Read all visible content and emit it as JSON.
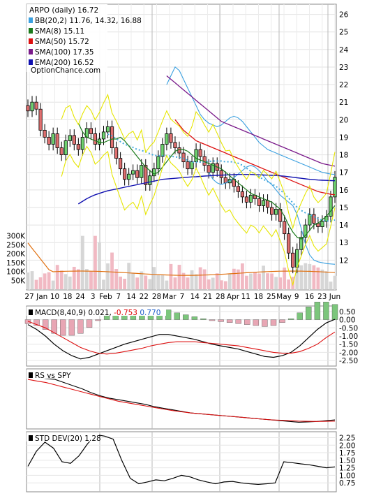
{
  "chart_data": [
    {
      "type": "candlestick",
      "panel": "price",
      "ylim": [
        10.5,
        26.5
      ],
      "y_ticks": [
        12,
        13,
        14,
        15,
        16,
        17,
        18,
        19,
        20,
        21,
        22,
        23,
        24,
        25,
        26
      ],
      "x_tick_labels": [
        "27",
        "Jan",
        "10",
        "18",
        "24",
        "3",
        "Feb",
        "7",
        "14",
        "22",
        "28",
        "Mar",
        "7",
        "14",
        "21",
        "28",
        "Apr",
        "11",
        "18",
        "25",
        "May",
        "9",
        "16",
        "23",
        "Jun"
      ],
      "watermark": "OptionChance.com",
      "legend": [
        {
          "key": "title",
          "label": "ARPO (daily) 16.72",
          "color": "#000000"
        },
        {
          "key": "bb",
          "label": "BB(20,2) 11.76, 14.32, 16.88",
          "color": "#3aa0e0"
        },
        {
          "key": "sma8",
          "label": "SMA(8) 15.11",
          "color": "#1a7a1a"
        },
        {
          "key": "sma50",
          "label": "SMA(50) 15.72",
          "color": "#dd1010"
        },
        {
          "key": "sma100",
          "label": "SMA(100) 17.35",
          "color": "#7a1a8a"
        },
        {
          "key": "ema200",
          "label": "EMA(200) 16.52",
          "color": "#1010b0"
        }
      ],
      "close": [
        20.5,
        21.0,
        20.6,
        19.4,
        19.0,
        18.6,
        19.2,
        18.4,
        18.0,
        18.8,
        19.1,
        18.6,
        18.3,
        19.0,
        19.5,
        19.2,
        18.6,
        18.9,
        19.3,
        19.6,
        18.4,
        17.8,
        17.2,
        16.6,
        16.9,
        17.1,
        16.7,
        17.4,
        16.3,
        16.8,
        17.2,
        17.9,
        18.6,
        19.2,
        18.7,
        18.4,
        18.1,
        17.6,
        17.2,
        17.6,
        18.3,
        17.9,
        17.4,
        17.0,
        17.5,
        17.1,
        16.7,
        16.4,
        16.6,
        16.2,
        15.9,
        15.6,
        15.3,
        15.7,
        15.5,
        15.1,
        15.4,
        15.0,
        14.6,
        14.9,
        14.2,
        13.5,
        12.4,
        11.6,
        12.6,
        13.3,
        14.0,
        14.6,
        14.1,
        13.9,
        14.2,
        14.5,
        15.6,
        16.72
      ],
      "sma8": [
        null,
        null,
        null,
        null,
        null,
        null,
        null,
        19.8,
        19.3,
        19.0,
        18.9,
        18.8,
        18.7,
        18.7,
        18.8,
        18.9,
        18.9,
        19.0,
        18.8,
        18.5,
        18.2,
        17.9,
        17.6,
        17.3,
        17.1,
        16.9,
        17.0,
        17.3,
        17.6,
        17.9,
        18.2,
        18.3,
        18.3,
        18.2,
        18.0,
        17.8,
        17.7,
        17.6,
        17.5,
        17.4,
        17.3,
        17.2,
        17.0,
        16.8,
        16.6,
        16.4,
        16.2,
        16.0,
        15.8,
        15.7,
        15.6,
        15.5,
        15.4,
        15.3,
        15.1,
        14.9,
        14.5,
        14.0,
        13.6,
        13.3,
        13.2,
        13.4,
        13.7,
        14.0,
        14.1,
        14.3,
        14.5,
        14.8,
        15.11
      ],
      "sma50": [
        null,
        null,
        null,
        null,
        null,
        null,
        null,
        null,
        null,
        null,
        null,
        null,
        null,
        null,
        null,
        null,
        null,
        null,
        null,
        null,
        null,
        20.0,
        19.7,
        19.4,
        19.2,
        19.0,
        18.8,
        18.7,
        18.6,
        18.5,
        18.4,
        18.3,
        18.2,
        18.1,
        18.0,
        17.9,
        17.8,
        17.7,
        17.6,
        17.5,
        17.4,
        17.3,
        17.2,
        17.1,
        17.0,
        16.9,
        16.8,
        16.7,
        16.6,
        16.5,
        16.4,
        16.3,
        16.2,
        16.1,
        16.0,
        15.9,
        15.85,
        15.8,
        15.75,
        15.72
      ],
      "sma100": [
        null,
        null,
        null,
        null,
        null,
        null,
        null,
        null,
        null,
        null,
        null,
        null,
        null,
        null,
        null,
        null,
        null,
        null,
        null,
        22.5,
        22.3,
        22.1,
        21.9,
        21.7,
        21.5,
        21.3,
        21.1,
        20.9,
        20.7,
        20.5,
        20.3,
        20.1,
        19.9,
        19.8,
        19.7,
        19.6,
        19.5,
        19.4,
        19.3,
        19.2,
        19.1,
        19.0,
        18.9,
        18.8,
        18.7,
        18.6,
        18.5,
        18.4,
        18.3,
        18.2,
        18.1,
        18.0,
        17.9,
        17.8,
        17.7,
        17.6,
        17.5,
        17.45,
        17.4,
        17.35
      ],
      "ema200": [
        15.2,
        15.35,
        15.5,
        15.62,
        15.72,
        15.8,
        15.88,
        15.95,
        16.0,
        16.05,
        16.1,
        16.15,
        16.2,
        16.25,
        16.3,
        16.35,
        16.4,
        16.45,
        16.5,
        16.55,
        16.6,
        16.62,
        16.64,
        16.66,
        16.68,
        16.7,
        16.72,
        16.74,
        16.75,
        16.77,
        16.79,
        16.8,
        16.82,
        16.83,
        16.84,
        16.85,
        16.86,
        16.87,
        16.88,
        16.88,
        16.88,
        16.88,
        16.87,
        16.86,
        16.85,
        16.84,
        16.83,
        16.82,
        16.8,
        16.78,
        16.75,
        16.72,
        16.69,
        16.66,
        16.63,
        16.6,
        16.58,
        16.56,
        16.55,
        16.54,
        16.53,
        16.52
      ],
      "bb_upper": [
        22.0,
        22.5,
        23.0,
        22.8,
        22.3,
        21.8,
        21.3,
        20.8,
        20.3,
        20.0,
        19.8,
        19.7,
        19.6,
        19.7,
        19.9,
        20.1,
        20.2,
        20.1,
        19.9,
        19.6,
        19.3,
        19.0,
        18.7,
        18.5,
        18.3,
        18.2,
        18.1,
        18.0,
        17.9,
        17.8,
        17.7,
        17.6,
        17.5,
        17.4,
        17.3,
        17.2,
        17.1,
        17.0,
        16.95,
        16.9,
        16.88
      ],
      "bb_lower": [
        17.0,
        16.6,
        16.4,
        16.3,
        16.4,
        16.5,
        16.7,
        16.9,
        17.1,
        17.3,
        17.4,
        17.3,
        17.1,
        16.8,
        16.5,
        16.3,
        16.0,
        15.7,
        15.5,
        15.3,
        15.1,
        14.6,
        13.8,
        12.9,
        12.3,
        12.0,
        11.9,
        11.85,
        11.8,
        11.78,
        11.76
      ],
      "volume_ticks": [
        "300K",
        "250K",
        "200K",
        "150K",
        "100K",
        "50K"
      ],
      "volume_max": 330000
    },
    {
      "type": "bar+line",
      "panel": "macd",
      "label": "MACD(8,40,9) 0.021, ",
      "values": [
        "-0.753",
        "0.770"
      ],
      "value_colors": [
        "#dd0000",
        "#1a5ac8"
      ],
      "ylim": [
        -2.75,
        0.75
      ],
      "y_ticks": [
        "0.50",
        "0.00",
        "-0.50",
        "-1.00",
        "-1.50",
        "-2.00",
        "-2.50"
      ],
      "macd": [
        -0.3,
        -0.6,
        -1.0,
        -1.5,
        -1.9,
        -2.2,
        -2.4,
        -2.3,
        -2.1,
        -1.9,
        -1.7,
        -1.5,
        -1.35,
        -1.2,
        -1.05,
        -0.9,
        -0.9,
        -1.0,
        -1.1,
        -1.2,
        -1.35,
        -1.5,
        -1.6,
        -1.7,
        -1.8,
        -1.95,
        -2.1,
        -2.25,
        -2.3,
        -2.2,
        -2.0,
        -1.6,
        -1.1,
        -0.6,
        -0.2,
        0.021
      ],
      "signal": [
        -0.1,
        -0.3,
        -0.5,
        -0.8,
        -1.1,
        -1.4,
        -1.7,
        -1.9,
        -2.05,
        -2.1,
        -2.05,
        -1.95,
        -1.85,
        -1.75,
        -1.6,
        -1.5,
        -1.4,
        -1.35,
        -1.35,
        -1.35,
        -1.4,
        -1.45,
        -1.5,
        -1.55,
        -1.6,
        -1.7,
        -1.8,
        -1.9,
        -2.0,
        -2.05,
        -2.05,
        -1.95,
        -1.75,
        -1.5,
        -1.1,
        -0.753
      ]
    },
    {
      "type": "line",
      "panel": "rs",
      "label": "RS vs SPY",
      "rs": [
        9.5,
        9.3,
        9.1,
        9.0,
        8.6,
        8.2,
        7.8,
        7.3,
        6.9,
        6.6,
        6.4,
        6.2,
        6.0,
        5.8,
        5.5,
        5.3,
        5.1,
        4.9,
        4.7,
        4.6,
        4.5,
        4.4,
        4.3,
        4.2,
        4.1,
        4.0,
        3.9,
        3.8,
        3.7,
        3.6,
        3.5,
        3.55,
        3.6,
        3.7,
        3.8
      ],
      "rs_ma": [
        9.0,
        8.8,
        8.6,
        8.3,
        8.0,
        7.7,
        7.4,
        7.1,
        6.8,
        6.5,
        6.2,
        6.0,
        5.8,
        5.6,
        5.4,
        5.2,
        5.0,
        4.85,
        4.7,
        4.6,
        4.5,
        4.4,
        4.3,
        4.2,
        4.1,
        4.0,
        3.9,
        3.8,
        3.75,
        3.7,
        3.65,
        3.62,
        3.6,
        3.62,
        3.65
      ]
    },
    {
      "type": "line",
      "panel": "stddev",
      "label": "STD DEV(20) 1.28",
      "ylim": [
        0.5,
        2.4
      ],
      "y_ticks": [
        "2.25",
        "2.00",
        "1.75",
        "1.50",
        "1.25",
        "1.00",
        "0.75"
      ],
      "values": [
        1.3,
        1.8,
        2.1,
        1.9,
        1.45,
        1.4,
        1.65,
        2.05,
        2.35,
        2.3,
        2.2,
        1.5,
        0.9,
        0.72,
        0.78,
        0.85,
        0.82,
        0.9,
        1.0,
        0.95,
        0.85,
        0.78,
        0.72,
        0.78,
        0.8,
        0.75,
        0.72,
        0.7,
        0.72,
        0.75,
        1.45,
        1.42,
        1.38,
        1.35,
        1.3,
        1.25,
        1.28
      ]
    }
  ]
}
